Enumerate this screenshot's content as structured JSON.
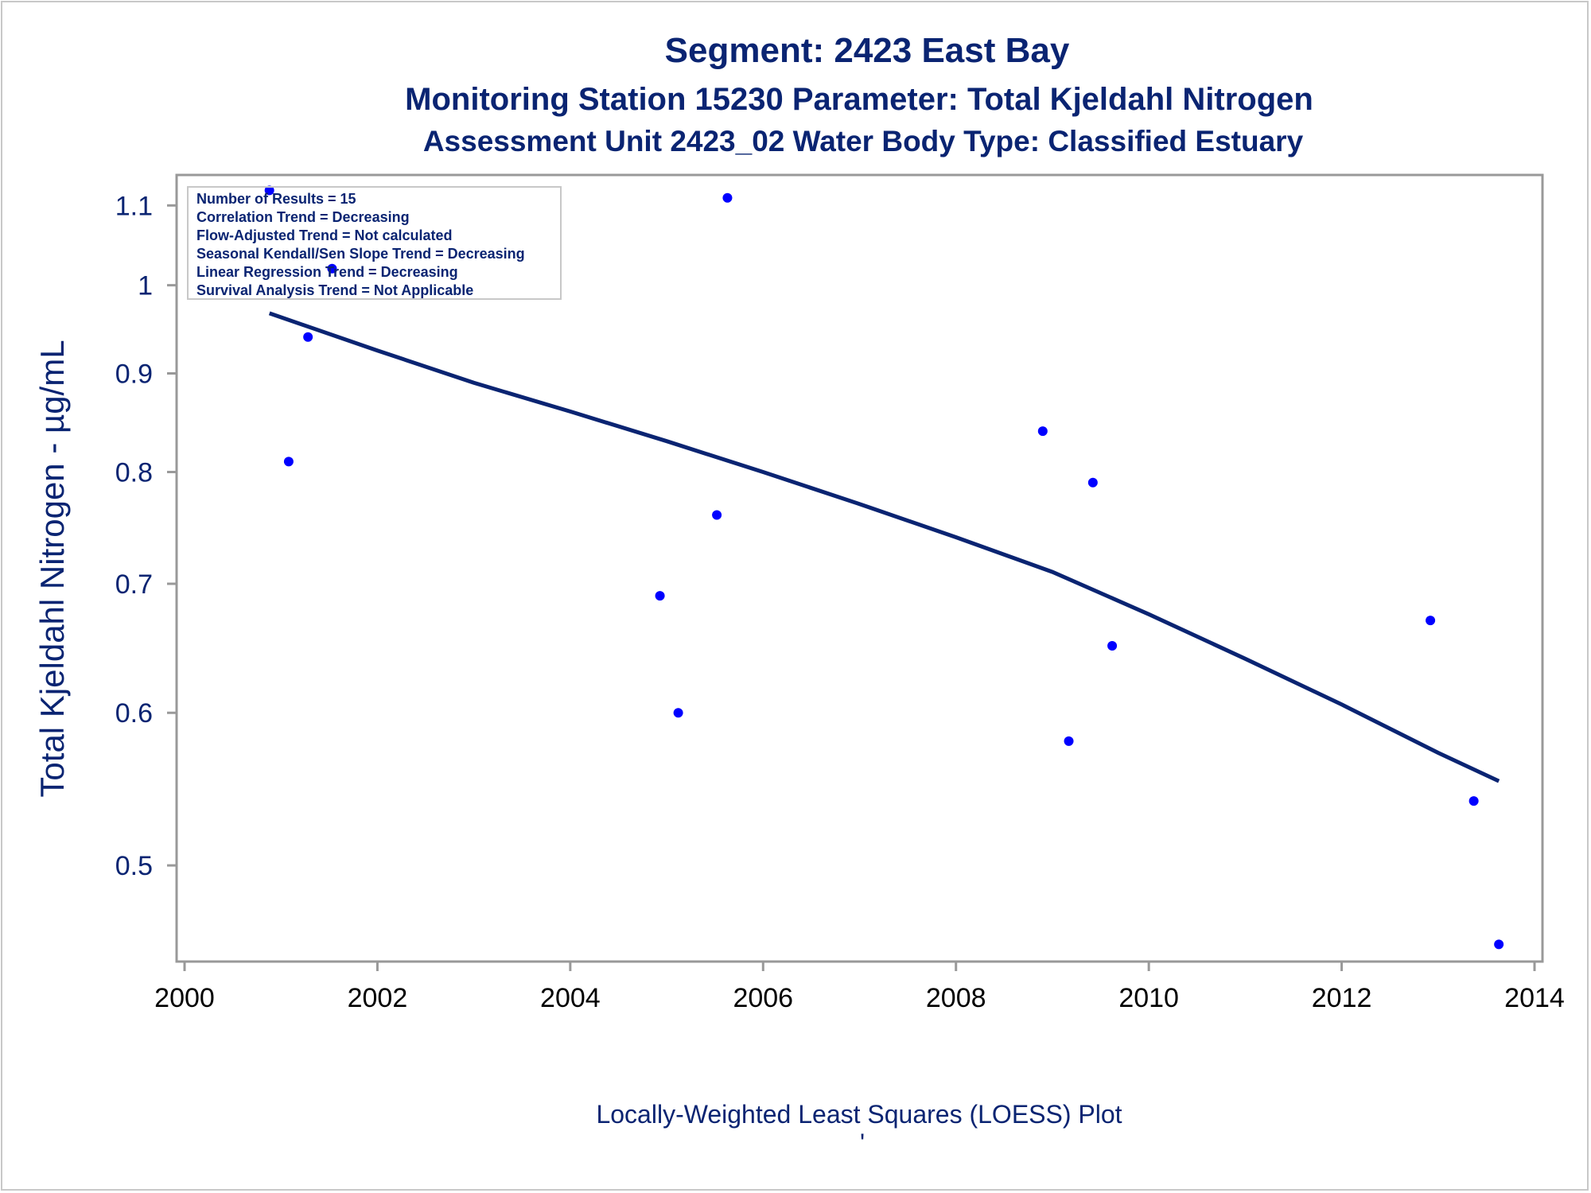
{
  "titles": {
    "line1": "Segment: 2423  East Bay",
    "line2": "Monitoring Station 15230 Parameter: Total Kjeldahl Nitrogen",
    "line3": "Assessment Unit 2423_02   Water Body Type: Classified Estuary"
  },
  "stats_box": [
    "Number of Results = 15",
    "Correlation Trend = Decreasing",
    "Flow-Adjusted Trend = Not calculated",
    "Seasonal Kendall/Sen Slope Trend = Decreasing",
    "Linear Regression Trend = Decreasing",
    "Survival Analysis Trend = Not Applicable"
  ],
  "footnote": "Locally-Weighted Least Squares (LOESS) Plot",
  "footnote_mark": "'",
  "colors": {
    "text": "#0a2472",
    "points": "#0000ff",
    "curve": "#0a2472",
    "frame": "#999999"
  },
  "chart_data": {
    "type": "scatter",
    "xlabel": "",
    "ylabel": "Total Kjeldahl Nitrogen -  µg/mL",
    "y_scale": "log",
    "xlim": [
      2000,
      2014
    ],
    "ylim": [
      0.45,
      1.13
    ],
    "x_ticks": [
      "2000",
      "2002",
      "2004",
      "2006",
      "2008",
      "2010",
      "2012",
      "2014"
    ],
    "y_ticks": [
      "0.5",
      "0.6",
      "0.7",
      "0.8",
      "0.9",
      "1",
      "1.1"
    ],
    "grid": false,
    "points": [
      {
        "x": 2000.88,
        "y": 1.12
      },
      {
        "x": 2001.08,
        "y": 0.81
      },
      {
        "x": 2001.28,
        "y": 0.94
      },
      {
        "x": 2001.53,
        "y": 1.02
      },
      {
        "x": 2004.93,
        "y": 0.69
      },
      {
        "x": 2005.12,
        "y": 0.6
      },
      {
        "x": 2005.52,
        "y": 0.76
      },
      {
        "x": 2005.63,
        "y": 1.11
      },
      {
        "x": 2008.9,
        "y": 0.84
      },
      {
        "x": 2009.17,
        "y": 0.58
      },
      {
        "x": 2009.42,
        "y": 0.79
      },
      {
        "x": 2009.62,
        "y": 0.65
      },
      {
        "x": 2012.92,
        "y": 0.67
      },
      {
        "x": 2013.37,
        "y": 0.54
      },
      {
        "x": 2013.63,
        "y": 0.455
      }
    ],
    "loess_curve": [
      {
        "x": 2000.88,
        "y": 0.967
      },
      {
        "x": 2002.0,
        "y": 0.925
      },
      {
        "x": 2003.0,
        "y": 0.89
      },
      {
        "x": 2004.0,
        "y": 0.86
      },
      {
        "x": 2005.0,
        "y": 0.83
      },
      {
        "x": 2006.0,
        "y": 0.8
      },
      {
        "x": 2007.0,
        "y": 0.77
      },
      {
        "x": 2008.0,
        "y": 0.74
      },
      {
        "x": 2009.0,
        "y": 0.71
      },
      {
        "x": 2010.0,
        "y": 0.675
      },
      {
        "x": 2011.0,
        "y": 0.64
      },
      {
        "x": 2012.0,
        "y": 0.606
      },
      {
        "x": 2013.0,
        "y": 0.572
      },
      {
        "x": 2013.63,
        "y": 0.553
      }
    ]
  }
}
